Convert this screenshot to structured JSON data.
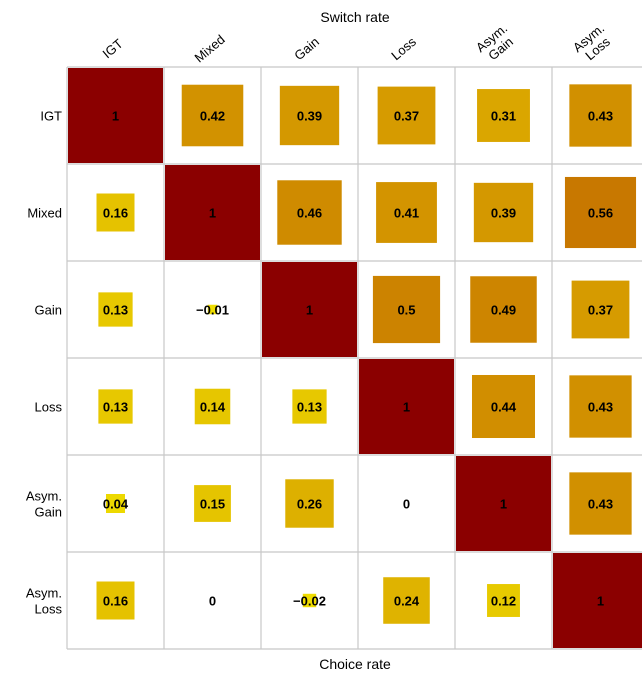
{
  "chart_data": {
    "type": "heatmap",
    "top_title": "Switch rate",
    "bottom_title": "Choice rate",
    "column_labels": [
      [
        "IGT"
      ],
      [
        "Mixed"
      ],
      [
        "Gain"
      ],
      [
        "Loss"
      ],
      [
        "Asym.",
        "Gain"
      ],
      [
        "Asym.",
        "Loss"
      ]
    ],
    "row_labels": [
      [
        "IGT"
      ],
      [
        "Mixed"
      ],
      [
        "Gain"
      ],
      [
        "Loss"
      ],
      [
        "Asym.",
        "Gain"
      ],
      [
        "Asym.",
        "Loss"
      ]
    ],
    "values": [
      [
        1,
        0.42,
        0.39,
        0.37,
        0.31,
        0.43
      ],
      [
        0.16,
        1,
        0.46,
        0.41,
        0.39,
        0.56
      ],
      [
        0.13,
        -0.01,
        1,
        0.5,
        0.49,
        0.37
      ],
      [
        0.13,
        0.14,
        0.13,
        1,
        0.44,
        0.43
      ],
      [
        0.04,
        0.15,
        0.26,
        0,
        1,
        0.43
      ],
      [
        0.16,
        0,
        -0.02,
        0.24,
        0.12,
        1
      ]
    ],
    "labels": [
      [
        "1",
        "0.42",
        "0.39",
        "0.37",
        "0.31",
        "0.43"
      ],
      [
        "0.16",
        "1",
        "0.46",
        "0.41",
        "0.39",
        "0.56"
      ],
      [
        "0.13",
        "−0.01",
        "1",
        "0.5",
        "0.49",
        "0.37"
      ],
      [
        "0.13",
        "0.14",
        "0.13",
        "1",
        "0.44",
        "0.43"
      ],
      [
        "0.04",
        "0.15",
        "0.26",
        "0",
        "1",
        "0.43"
      ],
      [
        "0.16",
        "0",
        "−0.02",
        "0.24",
        "0.12",
        "1"
      ]
    ],
    "color_scale": {
      "low": "#f0e000",
      "mid": "#c87800",
      "high": "#8b0000"
    },
    "grid": true,
    "legend": "none"
  }
}
